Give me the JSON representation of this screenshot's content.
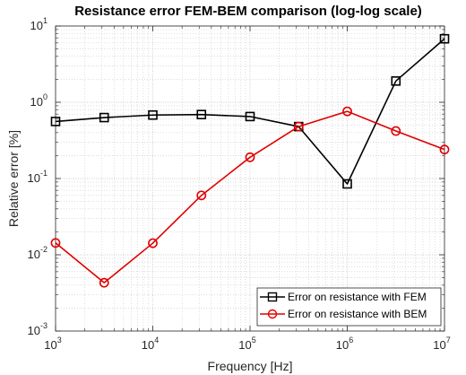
{
  "chart_data": {
    "type": "line",
    "title": "Resistance error FEM-BEM comparison (log-log scale)",
    "xlabel": "Frequency [Hz]",
    "ylabel": "Relative error [%]",
    "x_scale": "log",
    "y_scale": "log",
    "xlim": [
      1000,
      10000000
    ],
    "ylim": [
      0.001,
      10
    ],
    "x_ticks": [
      {
        "base": "10",
        "exp": "3",
        "value": 1000
      },
      {
        "base": "10",
        "exp": "4",
        "value": 10000
      },
      {
        "base": "10",
        "exp": "5",
        "value": 100000
      },
      {
        "base": "10",
        "exp": "6",
        "value": 1000000
      },
      {
        "base": "10",
        "exp": "7",
        "value": 10000000
      }
    ],
    "y_ticks": [
      {
        "base": "10",
        "exp": "-3",
        "value": 0.001
      },
      {
        "base": "10",
        "exp": "-2",
        "value": 0.01
      },
      {
        "base": "10",
        "exp": "-1",
        "value": 0.1
      },
      {
        "base": "10",
        "exp": "0",
        "value": 1
      },
      {
        "base": "10",
        "exp": "1",
        "value": 10
      }
    ],
    "grid": true,
    "minor_grid": true,
    "legend_position": "bottom-right",
    "x": [
      1000,
      3162,
      10000,
      31623,
      100000,
      316228,
      1000000,
      3162278,
      10000000
    ],
    "series": [
      {
        "name": "Error on resistance with FEM",
        "color": "#000000",
        "marker": "square",
        "values": [
          0.56,
          0.63,
          0.68,
          0.69,
          0.65,
          0.48,
          0.085,
          1.9,
          6.8
        ]
      },
      {
        "name": "Error on resistance with BEM",
        "color": "#e00000",
        "marker": "circle",
        "values": [
          0.0143,
          0.0043,
          0.0142,
          0.06,
          0.19,
          0.48,
          0.76,
          0.42,
          0.24
        ]
      }
    ]
  }
}
